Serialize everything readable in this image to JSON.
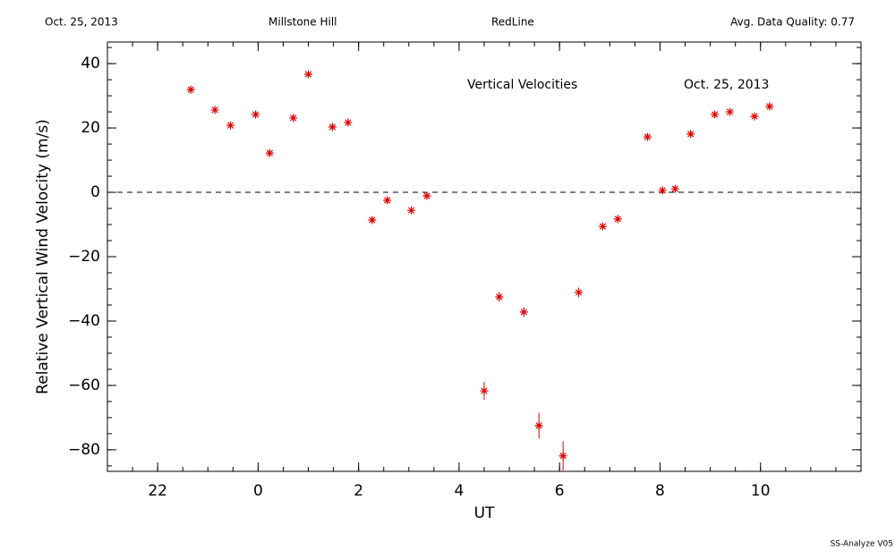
{
  "chart_data": {
    "type": "scatter",
    "header": [
      "Oct. 25, 2013",
      "Millstone Hill",
      "RedLine",
      "Avg. Data Quality: 0.77"
    ],
    "annotations": [
      "Vertical Velocities",
      "Oct. 25, 2013"
    ],
    "footer": "SS-Analyze V05",
    "x_label": "UT",
    "y_label": "Relative Vertical Wind Velocity (m/s)",
    "series": [
      {
        "name": "Vertical Velocities",
        "color": "#e00000",
        "x": [
          -1.34,
          -0.86,
          -0.55,
          -0.05,
          0.23,
          0.7,
          1.0,
          1.48,
          1.79,
          2.27,
          2.57,
          3.05,
          3.36,
          4.5,
          4.8,
          5.29,
          5.59,
          6.07,
          6.38,
          6.86,
          7.16,
          7.75,
          8.05,
          8.3,
          8.61,
          9.09,
          9.39,
          9.88,
          10.18
        ],
        "values": [
          31.9,
          25.6,
          20.8,
          24.2,
          12.2,
          23.1,
          36.7,
          20.3,
          21.7,
          -8.6,
          -2.5,
          -5.6,
          -1.1,
          -61.7,
          -32.5,
          -37.2,
          -72.5,
          -81.9,
          -31.1,
          -10.6,
          -8.3,
          17.2,
          0.6,
          1.1,
          18.1,
          24.2,
          25.0,
          23.6,
          26.7
        ],
        "errors": [
          1,
          1,
          1,
          1,
          1,
          1,
          1,
          1,
          1,
          1,
          1,
          1,
          1,
          2.8,
          1.5,
          1.5,
          4,
          4.5,
          1.5,
          1,
          1,
          1,
          1,
          1,
          1,
          1,
          1,
          1,
          1
        ]
      }
    ],
    "xlim": [
      -3,
      12
    ],
    "xticks": [
      {
        "value": -2,
        "label": "22"
      },
      0,
      2,
      4,
      6,
      8,
      10
    ],
    "x_minor_step": 0.5,
    "ylim": [
      -86.7,
      46.7
    ],
    "yticks": [
      {
        "value": -80,
        "label": "−80"
      },
      {
        "value": -60,
        "label": "−60"
      },
      {
        "value": -40,
        "label": "−40"
      },
      {
        "value": -20,
        "label": "−20"
      },
      0,
      20,
      40
    ],
    "y_minor_step": 5,
    "reference_line": 0
  }
}
